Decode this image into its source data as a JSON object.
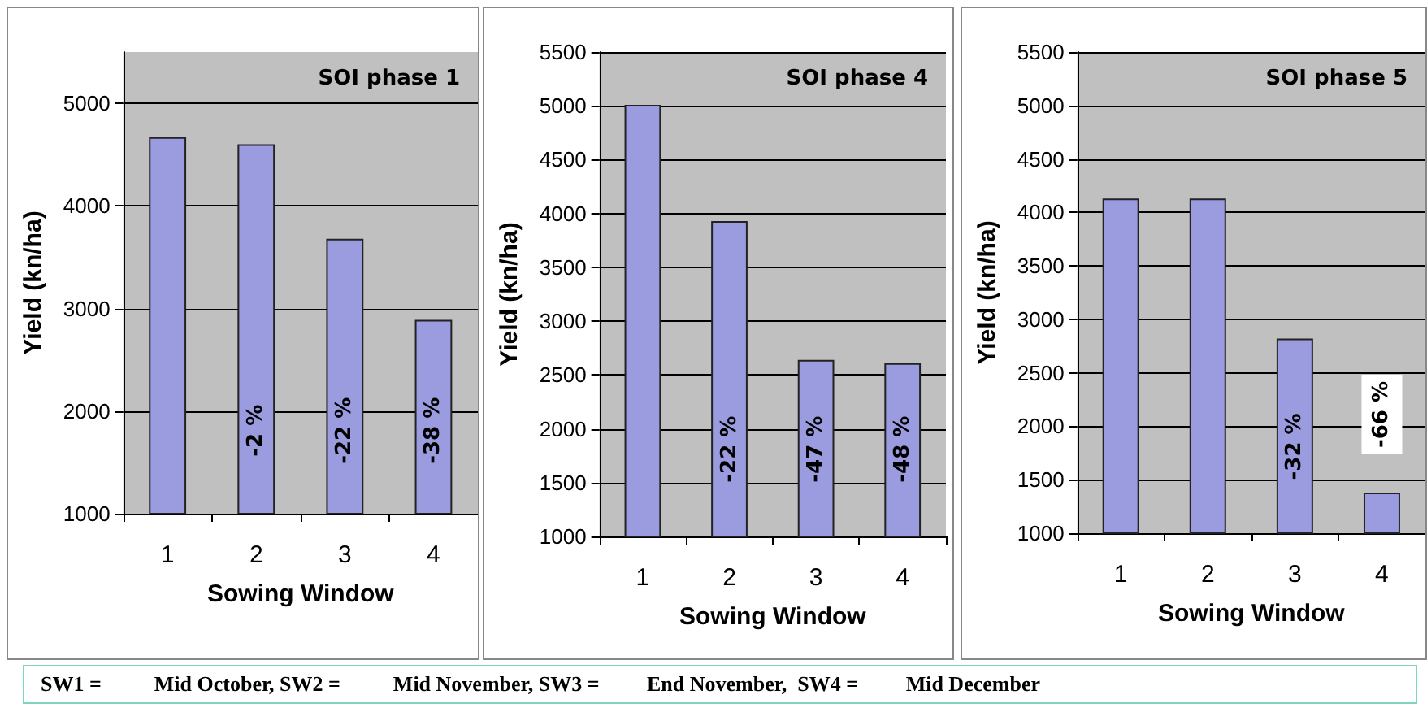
{
  "chart_data": [
    {
      "type": "bar",
      "title": "SOI phase 1",
      "xlabel": "Sowing Window",
      "ylabel": "Yield (kn/ha)",
      "categories": [
        "1",
        "2",
        "3",
        "4"
      ],
      "values": [
        4670,
        4600,
        3680,
        2890
      ],
      "color": "#9b9be0",
      "ylim": [
        1000,
        5500
      ],
      "yticks": [
        1000,
        2000,
        3000,
        4000,
        5000
      ],
      "grid": "y",
      "annotations": [
        "SW1 =          Mid October, SW2 =          Mid November, SW3 =         End November,  SW4 =         Mid December",
        "-2 %",
        "-22 %",
        "-38 %"
      ]
    },
    {
      "type": "bar",
      "title": "SOI phase 4",
      "xlabel": "Sowing Window",
      "ylabel": "Yield (kn/ha)",
      "categories": [
        "1",
        "2",
        "3",
        "4"
      ],
      "values": [
        5010,
        3930,
        2640,
        2610
      ],
      "color": "#9b9be0",
      "ylim": [
        1000,
        5500
      ],
      "yticks": [
        1000,
        1500,
        2000,
        2500,
        3000,
        3500,
        4000,
        4500,
        5000,
        5500
      ],
      "grid": "y",
      "annotations": [
        "-22 %",
        "-47 %",
        "-48 %"
      ]
    },
    {
      "type": "bar",
      "title": "SOI phase 5",
      "xlabel": "Sowing Window",
      "ylabel": "Yield (kn/ha)",
      "categories": [
        "1",
        "2",
        "3",
        "4"
      ],
      "values": [
        4130,
        4130,
        2820,
        1380
      ],
      "color": "#9b9be0",
      "ylim": [
        1000,
        5500
      ],
      "yticks": [
        1000,
        1500,
        2000,
        2500,
        3000,
        3500,
        4000,
        4500,
        5000,
        5500
      ],
      "grid": "y",
      "annotations": [
        "-32 %",
        "-66 %"
      ]
    }
  ]
}
